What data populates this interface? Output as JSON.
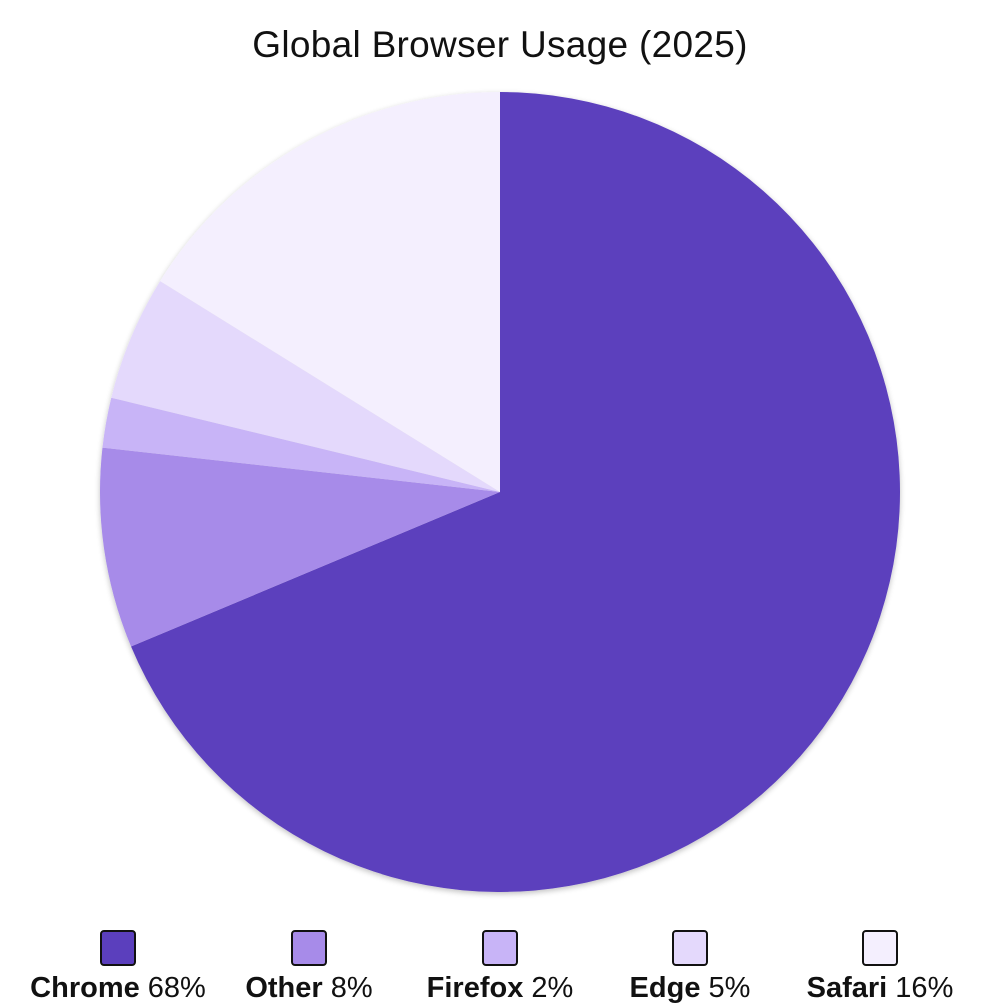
{
  "chart_data": {
    "type": "pie",
    "title": "Global Browser Usage (2025)",
    "slices": [
      {
        "name": "Chrome",
        "value": 68,
        "label": "68%",
        "color": "#5b3fbd"
      },
      {
        "name": "Other",
        "value": 8,
        "label": "8%",
        "color": "#a78be9"
      },
      {
        "name": "Firefox",
        "value": 2,
        "label": "2%",
        "color": "#c8b4f7"
      },
      {
        "name": "Edge",
        "value": 5,
        "label": "5%",
        "color": "#e4d9fc"
      },
      {
        "name": "Safari",
        "value": 16,
        "label": "16%",
        "color": "#f4effe"
      }
    ],
    "start_angle": "12 o'clock",
    "direction": "clockwise",
    "legend_position": "bottom"
  }
}
